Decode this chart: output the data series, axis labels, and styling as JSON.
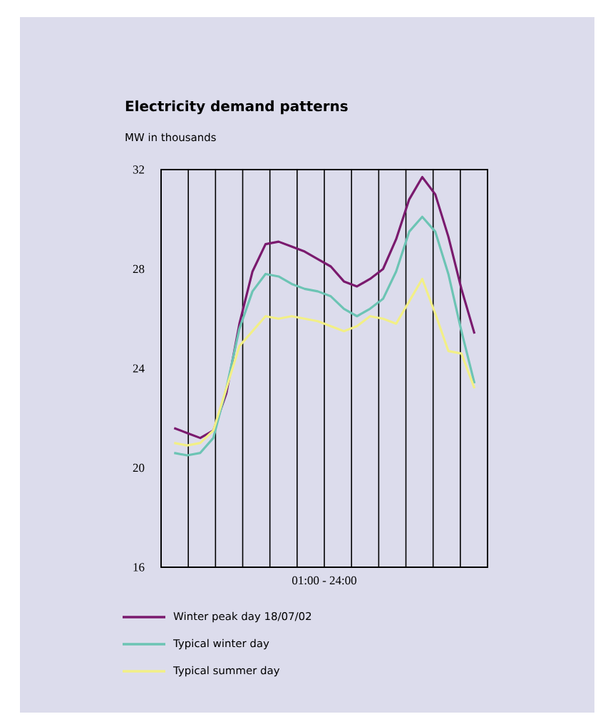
{
  "chart_data": {
    "type": "line",
    "title": "Electricity demand patterns",
    "ylabel": "MW in thousands",
    "xlabel": "01:00 - 24:00",
    "categories": [
      null,
      null,
      null,
      null,
      null,
      null,
      null,
      null,
      null,
      null,
      null,
      null,
      null,
      null,
      null,
      null,
      null,
      null,
      null,
      null,
      null,
      null,
      null,
      null
    ],
    "ylim": [
      16,
      32
    ],
    "yticks": [
      16,
      20,
      24,
      28,
      32
    ],
    "grid": "x",
    "legend": "bottom",
    "series": [
      {
        "name": "Winter peak day 18/07/02",
        "color": "#7a1a6e",
        "values": [
          21.6,
          21.4,
          21.2,
          21.5,
          23.0,
          25.8,
          27.9,
          29.0,
          29.1,
          28.9,
          28.7,
          28.4,
          28.1,
          27.5,
          27.3,
          27.6,
          28.0,
          29.2,
          30.8,
          31.7,
          31.0,
          29.3,
          27.2,
          25.4
        ]
      },
      {
        "name": "Typical winter day",
        "color": "#6cc4b4",
        "values": [
          20.6,
          20.5,
          20.6,
          21.2,
          23.2,
          25.6,
          27.1,
          27.8,
          27.7,
          27.4,
          27.2,
          27.1,
          26.9,
          26.4,
          26.1,
          26.4,
          26.8,
          27.9,
          29.5,
          30.1,
          29.5,
          27.8,
          25.5,
          23.4
        ]
      },
      {
        "name": "Typical summer day",
        "color": "#f2ef86",
        "values": [
          21.0,
          20.9,
          21.0,
          21.5,
          23.2,
          24.9,
          25.5,
          26.1,
          26.0,
          26.1,
          26.0,
          25.9,
          25.7,
          25.5,
          25.7,
          26.1,
          26.0,
          25.8,
          26.7,
          27.6,
          26.2,
          24.7,
          24.6,
          23.2
        ]
      }
    ]
  }
}
